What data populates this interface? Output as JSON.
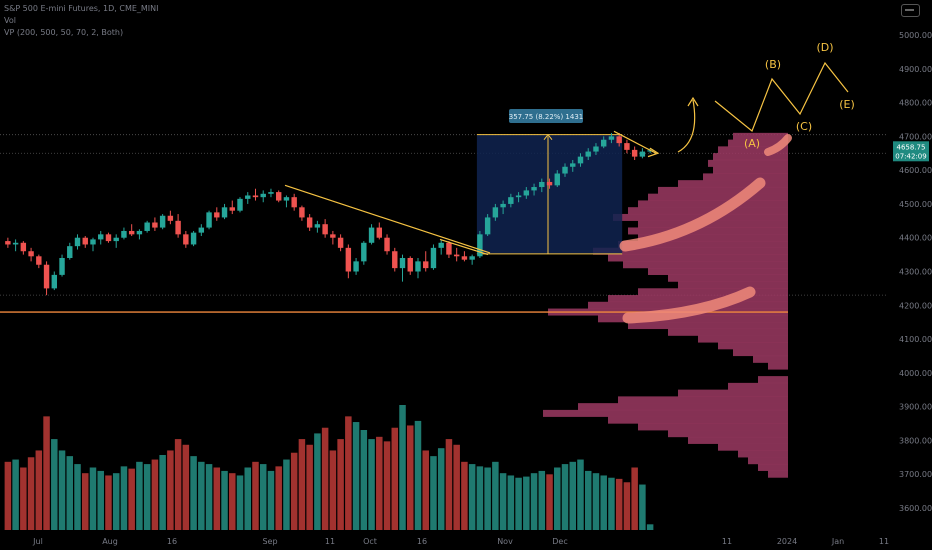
{
  "header": {
    "symbol_line": "S&P 500 E-mini Futures, 1D, CME_MINI",
    "vol_line": "Vol",
    "vp_line": "VP (200, 500, 50, 70, 2, Both)"
  },
  "colors": {
    "up": "#26a69a",
    "down": "#ef5350",
    "volume_up": "#1f7a70",
    "volume_down": "#a2322f",
    "profile": "#9c3a63",
    "trend": "#f6c343",
    "box": "#0f2350",
    "highlight": "#f08a7a",
    "support": "#f0883e"
  },
  "measure_label": "357.75 (8.22%) 1431",
  "last_price": {
    "price": "4658.75",
    "countdown": "07:42:09"
  },
  "wave_labels": [
    "(A)",
    "(B)",
    "(C)",
    "(D)",
    "(E)"
  ],
  "chart_data": {
    "type": "candlestick",
    "price_ticks": [
      "5000.00",
      "4900.00",
      "4800.00",
      "4700.00",
      "4600.00",
      "4500.00",
      "4400.00",
      "4300.00",
      "4200.00",
      "4100.00",
      "4000.00",
      "3900.00",
      "3800.00",
      "3700.00",
      "3600.00"
    ],
    "time_ticks": [
      "Jul",
      "Aug",
      "16",
      "Sep",
      "11",
      "Oct",
      "16",
      "Nov",
      "Dec",
      "11",
      "2024",
      "Jan",
      "11"
    ],
    "ylim": [
      3550,
      5050
    ],
    "candles": [
      [
        4390,
        4400,
        4370,
        4380
      ],
      [
        4380,
        4395,
        4360,
        4385
      ],
      [
        4385,
        4390,
        4350,
        4360
      ],
      [
        4360,
        4370,
        4330,
        4345
      ],
      [
        4345,
        4350,
        4310,
        4320
      ],
      [
        4320,
        4330,
        4230,
        4250
      ],
      [
        4250,
        4300,
        4245,
        4290
      ],
      [
        4290,
        4350,
        4285,
        4340
      ],
      [
        4340,
        4385,
        4335,
        4375
      ],
      [
        4375,
        4410,
        4365,
        4400
      ],
      [
        4400,
        4405,
        4370,
        4380
      ],
      [
        4380,
        4400,
        4360,
        4395
      ],
      [
        4395,
        4420,
        4380,
        4410
      ],
      [
        4410,
        4415,
        4385,
        4390
      ],
      [
        4390,
        4410,
        4370,
        4400
      ],
      [
        4400,
        4430,
        4395,
        4420
      ],
      [
        4420,
        4440,
        4405,
        4410
      ],
      [
        4410,
        4425,
        4395,
        4420
      ],
      [
        4420,
        4450,
        4415,
        4445
      ],
      [
        4445,
        4460,
        4420,
        4430
      ],
      [
        4430,
        4470,
        4425,
        4465
      ],
      [
        4465,
        4480,
        4440,
        4450
      ],
      [
        4450,
        4470,
        4400,
        4410
      ],
      [
        4410,
        4420,
        4370,
        4380
      ],
      [
        4380,
        4420,
        4375,
        4415
      ],
      [
        4415,
        4440,
        4405,
        4430
      ],
      [
        4430,
        4480,
        4425,
        4475
      ],
      [
        4475,
        4490,
        4450,
        4460
      ],
      [
        4460,
        4500,
        4455,
        4490
      ],
      [
        4490,
        4510,
        4470,
        4480
      ],
      [
        4480,
        4520,
        4475,
        4515
      ],
      [
        4515,
        4535,
        4500,
        4525
      ],
      [
        4525,
        4545,
        4510,
        4520
      ],
      [
        4520,
        4540,
        4505,
        4530
      ],
      [
        4530,
        4545,
        4520,
        4535
      ],
      [
        4535,
        4540,
        4505,
        4510
      ],
      [
        4510,
        4525,
        4490,
        4520
      ],
      [
        4520,
        4530,
        4480,
        4490
      ],
      [
        4490,
        4495,
        4450,
        4460
      ],
      [
        4460,
        4470,
        4420,
        4430
      ],
      [
        4430,
        4450,
        4415,
        4440
      ],
      [
        4440,
        4455,
        4400,
        4410
      ],
      [
        4410,
        4420,
        4380,
        4400
      ],
      [
        4400,
        4410,
        4360,
        4370
      ],
      [
        4370,
        4380,
        4280,
        4300
      ],
      [
        4300,
        4340,
        4290,
        4330
      ],
      [
        4330,
        4390,
        4320,
        4385
      ],
      [
        4385,
        4440,
        4380,
        4430
      ],
      [
        4430,
        4445,
        4395,
        4400
      ],
      [
        4400,
        4410,
        4350,
        4360
      ],
      [
        4360,
        4370,
        4300,
        4310
      ],
      [
        4310,
        4350,
        4270,
        4340
      ],
      [
        4340,
        4345,
        4290,
        4300
      ],
      [
        4300,
        4340,
        4280,
        4330
      ],
      [
        4330,
        4360,
        4300,
        4310
      ],
      [
        4310,
        4380,
        4305,
        4370
      ],
      [
        4370,
        4395,
        4350,
        4385
      ],
      [
        4385,
        4390,
        4340,
        4350
      ],
      [
        4350,
        4370,
        4330,
        4345
      ],
      [
        4345,
        4360,
        4330,
        4335
      ],
      [
        4335,
        4350,
        4320,
        4345
      ],
      [
        4345,
        4420,
        4340,
        4410
      ],
      [
        4410,
        4470,
        4405,
        4460
      ],
      [
        4460,
        4500,
        4450,
        4490
      ],
      [
        4490,
        4510,
        4470,
        4500
      ],
      [
        4500,
        4530,
        4490,
        4520
      ],
      [
        4520,
        4535,
        4505,
        4525
      ],
      [
        4525,
        4550,
        4515,
        4540
      ],
      [
        4540,
        4560,
        4525,
        4550
      ],
      [
        4550,
        4575,
        4535,
        4565
      ],
      [
        4565,
        4575,
        4545,
        4555
      ],
      [
        4555,
        4600,
        4550,
        4590
      ],
      [
        4590,
        4620,
        4580,
        4610
      ],
      [
        4610,
        4630,
        4595,
        4620
      ],
      [
        4620,
        4650,
        4610,
        4640
      ],
      [
        4640,
        4665,
        4630,
        4655
      ],
      [
        4655,
        4680,
        4645,
        4670
      ],
      [
        4670,
        4700,
        4665,
        4690
      ],
      [
        4690,
        4710,
        4680,
        4700
      ],
      [
        4700,
        4710,
        4670,
        4680
      ],
      [
        4680,
        4690,
        4650,
        4660
      ],
      [
        4660,
        4670,
        4630,
        4640
      ],
      [
        4640,
        4665,
        4635,
        4655
      ],
      [
        4655,
        4665,
        4650,
        4658.75
      ]
    ],
    "volume": [
      60,
      62,
      55,
      64,
      70,
      100,
      80,
      70,
      65,
      58,
      50,
      55,
      52,
      48,
      50,
      56,
      54,
      60,
      58,
      62,
      66,
      70,
      80,
      75,
      65,
      60,
      58,
      55,
      52,
      50,
      48,
      55,
      60,
      58,
      52,
      56,
      62,
      68,
      80,
      75,
      85,
      90,
      70,
      80,
      100,
      95,
      88,
      80,
      82,
      78,
      90,
      110,
      92,
      96,
      70,
      65,
      72,
      80,
      75,
      60,
      58,
      56,
      55,
      60,
      50,
      48,
      46,
      47,
      50,
      52,
      49,
      55,
      58,
      60,
      62,
      52,
      50,
      48,
      46,
      45,
      42,
      55,
      40,
      5
    ],
    "volume_profile": [
      [
        4700,
        55
      ],
      [
        4680,
        60
      ],
      [
        4660,
        70
      ],
      [
        4640,
        75
      ],
      [
        4620,
        80
      ],
      [
        4600,
        75
      ],
      [
        4580,
        85
      ],
      [
        4560,
        110
      ],
      [
        4540,
        130
      ],
      [
        4520,
        140
      ],
      [
        4500,
        150
      ],
      [
        4480,
        160
      ],
      [
        4460,
        175
      ],
      [
        4440,
        150
      ],
      [
        4420,
        160
      ],
      [
        4400,
        150
      ],
      [
        4380,
        170
      ],
      [
        4360,
        195
      ],
      [
        4340,
        180
      ],
      [
        4320,
        165
      ],
      [
        4300,
        140
      ],
      [
        4280,
        120
      ],
      [
        4260,
        110
      ],
      [
        4240,
        150
      ],
      [
        4220,
        180
      ],
      [
        4200,
        200
      ],
      [
        4180,
        240
      ],
      [
        4160,
        190
      ],
      [
        4140,
        160
      ],
      [
        4120,
        120
      ],
      [
        4100,
        90
      ],
      [
        4080,
        70
      ],
      [
        4060,
        55
      ],
      [
        4040,
        35
      ],
      [
        4020,
        20
      ],
      [
        3980,
        30
      ],
      [
        3960,
        60
      ],
      [
        3940,
        110
      ],
      [
        3920,
        170
      ],
      [
        3900,
        210
      ],
      [
        3880,
        245
      ],
      [
        3860,
        180
      ],
      [
        3840,
        150
      ],
      [
        3820,
        120
      ],
      [
        3800,
        100
      ],
      [
        3780,
        70
      ],
      [
        3760,
        50
      ],
      [
        3740,
        40
      ],
      [
        3720,
        30
      ],
      [
        3700,
        20
      ]
    ]
  }
}
